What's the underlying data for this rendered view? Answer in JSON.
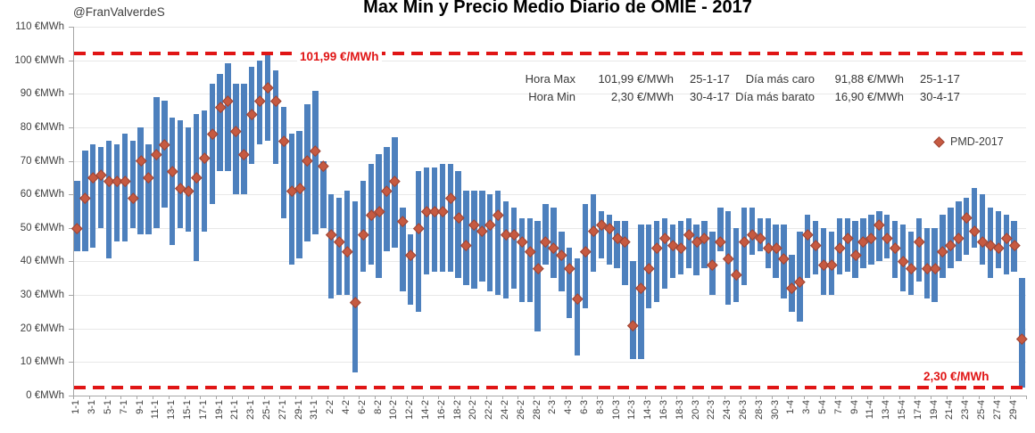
{
  "header": {
    "title": "Max Min y Precio Medio Diario de OMIE - 2017",
    "handle": "@FranValverdeS"
  },
  "legend": {
    "label": "PMD-2017"
  },
  "annotations": {
    "max_label": "101,99 €/MWh",
    "min_label": "2,30 €/MWh",
    "max_value": 101.99,
    "min_value": 2.3
  },
  "stats": {
    "col1": [
      {
        "label": "Hora Max",
        "value": "101,99 €/MWh",
        "date": "25-1-17"
      },
      {
        "label": "Hora Min",
        "value": "2,30 €/MWh",
        "date": "30-4-17"
      }
    ],
    "col2": [
      {
        "label": "Día más caro",
        "value": "91,88 €/MWh",
        "date": "25-1-17"
      },
      {
        "label": "Día más barato",
        "value": "16,90 €/MWh",
        "date": "30-4-17"
      }
    ]
  },
  "colors": {
    "bar": "#4d80bd",
    "marker": "#c65a41",
    "marker_border": "#9e4434",
    "dashed_line": "#e01515",
    "grid": "#e8e8e8",
    "axis": "#a6a6a6",
    "text": "#404040"
  },
  "y_axis": {
    "tick_labels": [
      "0 €MWh",
      "10 €MWh",
      "20 €MWh",
      "30 €MWh",
      "40 €MWh",
      "50 €MWh",
      "60 €MWh",
      "70 €MWh",
      "80 €MWh",
      "90 €MWh",
      "100 €MWh",
      "110 €MWh"
    ]
  },
  "chart_data": {
    "type": "bar",
    "subtype": "floating-range-bars-with-markers",
    "title": "Max Min y Precio Medio Diario de OMIE - 2017",
    "xlabel": "",
    "ylabel": "€MWh",
    "ylim": [
      0,
      110
    ],
    "ytick_step": 10,
    "grid": "horizontal",
    "legend_position": "right-upper",
    "x_label_every": 2,
    "categories": [
      "1-1",
      "2-1",
      "3-1",
      "4-1",
      "5-1",
      "6-1",
      "7-1",
      "8-1",
      "9-1",
      "10-1",
      "11-1",
      "12-1",
      "13-1",
      "14-1",
      "15-1",
      "16-1",
      "17-1",
      "18-1",
      "19-1",
      "20-1",
      "21-1",
      "22-1",
      "23-1",
      "24-1",
      "25-1",
      "26-1",
      "27-1",
      "28-1",
      "29-1",
      "30-1",
      "31-1",
      "1-2",
      "2-2",
      "3-2",
      "4-2",
      "5-2",
      "6-2",
      "7-2",
      "8-2",
      "9-2",
      "10-2",
      "11-2",
      "12-2",
      "13-2",
      "14-2",
      "15-2",
      "16-2",
      "17-2",
      "18-2",
      "19-2",
      "20-2",
      "21-2",
      "22-2",
      "23-2",
      "24-2",
      "25-2",
      "26-2",
      "27-2",
      "28-2",
      "1-3",
      "2-3",
      "3-3",
      "4-3",
      "5-3",
      "6-3",
      "7-3",
      "8-3",
      "9-3",
      "10-3",
      "11-3",
      "12-3",
      "13-3",
      "14-3",
      "15-3",
      "16-3",
      "17-3",
      "18-3",
      "19-3",
      "20-3",
      "21-3",
      "22-3",
      "23-3",
      "24-3",
      "25-3",
      "26-3",
      "27-3",
      "28-3",
      "29-3",
      "30-3",
      "31-3",
      "1-4",
      "2-4",
      "3-4",
      "4-4",
      "5-4",
      "6-4",
      "7-4",
      "8-4",
      "9-4",
      "10-4",
      "11-4",
      "12-4",
      "13-4",
      "14-4",
      "15-4",
      "16-4",
      "17-4",
      "18-4",
      "19-4",
      "20-4",
      "21-4",
      "22-4",
      "23-4",
      "24-4",
      "25-4",
      "26-4",
      "27-4",
      "28-4",
      "29-4",
      "30-4"
    ],
    "series": [
      {
        "name": "Min",
        "values": [
          43,
          43,
          44,
          50,
          41,
          46,
          46,
          50,
          48,
          48,
          50,
          56,
          45,
          50,
          49,
          40,
          49,
          57,
          67,
          67,
          60,
          60,
          69,
          75,
          76,
          69,
          53,
          39,
          41,
          46,
          48,
          50,
          29,
          30,
          30,
          7,
          37,
          39,
          35,
          43,
          44,
          31,
          27,
          25,
          36,
          37,
          37,
          37,
          35,
          33,
          32,
          34,
          31,
          30,
          29,
          32,
          28,
          28,
          19,
          39,
          35,
          31,
          23,
          12,
          26,
          37,
          41,
          39,
          38,
          33,
          11,
          11,
          26,
          28,
          32,
          35,
          36,
          38,
          36,
          38,
          30,
          43,
          27,
          28,
          33,
          42,
          43,
          38,
          35,
          29,
          25,
          22,
          35,
          36,
          30,
          30,
          36,
          37,
          35,
          38,
          39,
          40,
          41,
          35,
          31,
          30,
          34,
          29,
          28,
          35,
          38,
          40,
          42,
          44,
          39,
          35,
          38,
          36,
          37,
          2.3
        ]
      },
      {
        "name": "Max",
        "values": [
          64,
          73,
          75,
          74,
          76,
          75,
          78,
          76,
          80,
          75,
          89,
          88,
          83,
          82,
          80,
          84,
          85,
          93,
          96,
          99,
          93,
          93,
          98,
          100,
          101.99,
          97,
          86,
          78,
          79,
          87,
          91,
          70,
          60,
          59,
          61,
          58,
          64,
          69,
          72,
          74,
          77,
          56,
          48,
          67,
          68,
          68,
          69,
          69,
          67,
          61,
          61,
          61,
          60,
          61,
          58,
          56,
          53,
          53,
          52,
          57,
          56,
          49,
          44,
          41,
          57,
          60,
          55,
          54,
          52,
          52,
          40,
          51,
          51,
          52,
          53,
          51,
          52,
          53,
          51,
          52,
          49,
          56,
          55,
          50,
          56,
          56,
          53,
          53,
          51,
          51,
          42,
          49,
          54,
          52,
          50,
          49,
          53,
          53,
          52,
          53,
          54,
          55,
          54,
          52,
          51,
          49,
          53,
          50,
          50,
          54,
          56,
          58,
          59,
          62,
          60,
          56,
          55,
          54,
          52,
          35
        ]
      },
      {
        "name": "PMD-2017",
        "values": [
          50,
          59,
          65,
          66,
          64,
          64,
          64,
          59,
          70,
          65,
          72,
          75,
          67,
          62,
          61,
          65,
          71,
          78,
          86,
          88,
          79,
          72,
          84,
          88,
          91.88,
          88,
          76,
          61,
          62,
          70,
          73,
          68.5,
          48,
          46,
          43,
          28,
          48,
          54,
          55,
          61,
          64,
          52,
          42,
          50,
          55,
          55,
          55,
          59,
          53,
          45,
          51,
          49,
          51,
          54,
          48,
          48,
          46,
          43,
          38,
          46,
          44,
          42,
          38,
          29,
          43,
          49,
          51,
          50,
          47,
          46,
          21,
          32,
          38,
          44,
          47,
          45,
          44,
          48,
          46,
          47,
          39,
          46,
          41,
          36,
          46,
          48,
          47,
          44,
          44,
          41,
          32,
          34,
          48,
          45,
          39,
          39,
          44,
          47,
          42,
          46,
          47,
          51,
          47,
          44,
          40,
          38,
          46,
          38,
          38,
          43,
          45,
          47,
          53,
          49,
          46,
          45,
          44,
          47,
          45,
          16.9
        ]
      }
    ]
  }
}
